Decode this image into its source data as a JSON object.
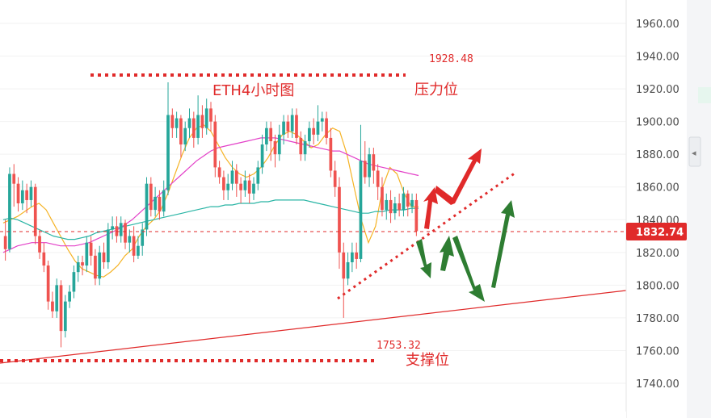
{
  "chart_data": {
    "type": "candlestick",
    "title": "ETH4小时图",
    "y_axis": {
      "ylim": [
        1730,
        1970
      ],
      "ticks": [
        "1960.00",
        "1940.00",
        "1920.00",
        "1900.00",
        "1880.00",
        "1860.00",
        "1840.00",
        "1820.00",
        "1800.00",
        "1780.00",
        "1760.00",
        "1740.00"
      ],
      "tick_values": [
        1960,
        1940,
        1920,
        1900,
        1880,
        1860,
        1840,
        1820,
        1800,
        1780,
        1760,
        1740
      ]
    },
    "current_price": {
      "label": "1832.74",
      "value": 1832.74
    },
    "resistance": {
      "label": "压力位",
      "price_label": "1928.48",
      "value": 1928.48
    },
    "support": {
      "label": "支撑位",
      "price_label": "1753.32",
      "value": 1753.32
    },
    "candles": [
      [
        1830,
        1822,
        1840,
        1815
      ],
      [
        1822,
        1868,
        1872,
        1820
      ],
      [
        1868,
        1862,
        1874,
        1848
      ],
      [
        1862,
        1850,
        1866,
        1845
      ],
      [
        1850,
        1858,
        1864,
        1846
      ],
      [
        1858,
        1852,
        1862,
        1844
      ],
      [
        1852,
        1860,
        1864,
        1848
      ],
      [
        1860,
        1830,
        1862,
        1825
      ],
      [
        1830,
        1820,
        1834,
        1816
      ],
      [
        1820,
        1812,
        1826,
        1808
      ],
      [
        1812,
        1790,
        1815,
        1785
      ],
      [
        1790,
        1784,
        1796,
        1780
      ],
      [
        1784,
        1800,
        1804,
        1780
      ],
      [
        1800,
        1772,
        1803,
        1762
      ],
      [
        1772,
        1790,
        1794,
        1768
      ],
      [
        1790,
        1796,
        1800,
        1786
      ],
      [
        1796,
        1808,
        1812,
        1792
      ],
      [
        1808,
        1814,
        1818,
        1802
      ],
      [
        1814,
        1812,
        1818,
        1806
      ],
      [
        1812,
        1826,
        1830,
        1808
      ],
      [
        1826,
        1818,
        1830,
        1812
      ],
      [
        1818,
        1804,
        1822,
        1800
      ],
      [
        1804,
        1820,
        1824,
        1800
      ],
      [
        1820,
        1814,
        1826,
        1810
      ],
      [
        1814,
        1834,
        1838,
        1810
      ],
      [
        1834,
        1836,
        1842,
        1828
      ],
      [
        1836,
        1830,
        1842,
        1826
      ],
      [
        1830,
        1838,
        1842,
        1826
      ],
      [
        1838,
        1826,
        1840,
        1822
      ],
      [
        1826,
        1830,
        1834,
        1820
      ],
      [
        1830,
        1818,
        1836,
        1814
      ],
      [
        1818,
        1824,
        1830,
        1816
      ],
      [
        1824,
        1834,
        1838,
        1818
      ],
      [
        1834,
        1862,
        1866,
        1830
      ],
      [
        1862,
        1846,
        1866,
        1842
      ],
      [
        1846,
        1854,
        1860,
        1842
      ],
      [
        1854,
        1845,
        1858,
        1840
      ],
      [
        1845,
        1858,
        1864,
        1842
      ],
      [
        1858,
        1904,
        1924,
        1855
      ],
      [
        1904,
        1896,
        1908,
        1890
      ],
      [
        1896,
        1902,
        1906,
        1890
      ],
      [
        1902,
        1886,
        1904,
        1878
      ],
      [
        1886,
        1896,
        1900,
        1882
      ],
      [
        1896,
        1902,
        1908,
        1890
      ],
      [
        1902,
        1890,
        1906,
        1884
      ],
      [
        1890,
        1904,
        1916,
        1886
      ],
      [
        1904,
        1896,
        1910,
        1890
      ],
      [
        1896,
        1908,
        1914,
        1892
      ],
      [
        1908,
        1900,
        1912,
        1894
      ],
      [
        1900,
        1872,
        1904,
        1866
      ],
      [
        1872,
        1866,
        1876,
        1862
      ],
      [
        1866,
        1858,
        1870,
        1852
      ],
      [
        1858,
        1862,
        1868,
        1852
      ],
      [
        1862,
        1870,
        1876,
        1858
      ],
      [
        1870,
        1862,
        1874,
        1854
      ],
      [
        1862,
        1858,
        1866,
        1850
      ],
      [
        1858,
        1864,
        1870,
        1854
      ],
      [
        1864,
        1856,
        1868,
        1850
      ],
      [
        1856,
        1862,
        1866,
        1852
      ],
      [
        1862,
        1872,
        1876,
        1858
      ],
      [
        1872,
        1886,
        1892,
        1868
      ],
      [
        1886,
        1896,
        1900,
        1882
      ],
      [
        1896,
        1888,
        1900,
        1876
      ],
      [
        1888,
        1880,
        1892,
        1872
      ],
      [
        1880,
        1892,
        1898,
        1876
      ],
      [
        1892,
        1900,
        1904,
        1886
      ],
      [
        1900,
        1894,
        1904,
        1890
      ],
      [
        1894,
        1904,
        1908,
        1890
      ],
      [
        1904,
        1890,
        1908,
        1886
      ],
      [
        1890,
        1880,
        1894,
        1876
      ],
      [
        1880,
        1888,
        1892,
        1876
      ],
      [
        1888,
        1896,
        1900,
        1884
      ],
      [
        1896,
        1892,
        1902,
        1886
      ],
      [
        1892,
        1900,
        1910,
        1888
      ],
      [
        1900,
        1902,
        1906,
        1894
      ],
      [
        1902,
        1890,
        1906,
        1886
      ],
      [
        1890,
        1870,
        1896,
        1866
      ],
      [
        1870,
        1860,
        1876,
        1854
      ],
      [
        1860,
        1820,
        1866,
        1810
      ],
      [
        1820,
        1804,
        1826,
        1780
      ],
      [
        1804,
        1814,
        1820,
        1800
      ],
      [
        1814,
        1820,
        1826,
        1808
      ],
      [
        1820,
        1816,
        1826,
        1810
      ],
      [
        1816,
        1876,
        1898,
        1814
      ],
      [
        1876,
        1866,
        1888,
        1862
      ],
      [
        1866,
        1880,
        1884,
        1860
      ],
      [
        1880,
        1870,
        1884,
        1862
      ],
      [
        1870,
        1860,
        1874,
        1852
      ],
      [
        1860,
        1846,
        1866,
        1842
      ],
      [
        1846,
        1852,
        1856,
        1840
      ],
      [
        1852,
        1844,
        1858,
        1838
      ],
      [
        1844,
        1850,
        1854,
        1840
      ],
      [
        1850,
        1846,
        1856,
        1842
      ],
      [
        1846,
        1856,
        1860,
        1842
      ],
      [
        1856,
        1848,
        1858,
        1842
      ],
      [
        1848,
        1852,
        1856,
        1844
      ],
      [
        1852,
        1833,
        1856,
        1830
      ]
    ],
    "moving_averages": [
      {
        "color": "#f5b325",
        "values": [
          1838,
          1840,
          1842,
          1845,
          1848,
          1850,
          1846,
          1838,
          1830,
          1822,
          1815,
          1810,
          1808,
          1806,
          1805,
          1808,
          1812,
          1818,
          1822,
          1830,
          1836,
          1840,
          1846,
          1856,
          1868,
          1880,
          1890,
          1896,
          1898,
          1894,
          1886,
          1878,
          1872,
          1868,
          1866,
          1868,
          1872,
          1878,
          1886,
          1892,
          1894,
          1892,
          1888,
          1884,
          1886,
          1892,
          1896,
          1894,
          1880,
          1860,
          1840,
          1826,
          1836,
          1860,
          1872,
          1868,
          1856,
          1848,
          1848
        ]
      },
      {
        "color": "#2ab5a5",
        "values": [
          1840,
          1841,
          1840,
          1838,
          1836,
          1834,
          1832,
          1830,
          1829,
          1828,
          1828,
          1829,
          1830,
          1832,
          1833,
          1834,
          1835,
          1836,
          1837,
          1838,
          1839,
          1840,
          1841,
          1842,
          1843,
          1844,
          1845,
          1846,
          1847,
          1848,
          1848,
          1849,
          1849,
          1850,
          1850,
          1850,
          1851,
          1851,
          1852,
          1852,
          1852,
          1852,
          1852,
          1851,
          1850,
          1849,
          1848,
          1847,
          1846,
          1845,
          1844,
          1844,
          1845,
          1845,
          1846,
          1846,
          1846,
          1847,
          1847
        ]
      },
      {
        "color": "#e340c8",
        "values": [
          1820,
          1822,
          1824,
          1825,
          1826,
          1826,
          1826,
          1825,
          1824,
          1824,
          1824,
          1825,
          1826,
          1828,
          1830,
          1832,
          1834,
          1837,
          1840,
          1844,
          1848,
          1852,
          1856,
          1860,
          1864,
          1868,
          1872,
          1876,
          1879,
          1882,
          1884,
          1885,
          1886,
          1887,
          1888,
          1889,
          1890,
          1890,
          1890,
          1889,
          1888,
          1887,
          1886,
          1885,
          1884,
          1883,
          1882,
          1882,
          1880,
          1878,
          1876,
          1874,
          1873,
          1872,
          1871,
          1870,
          1869,
          1868,
          1867
        ]
      }
    ]
  }
}
